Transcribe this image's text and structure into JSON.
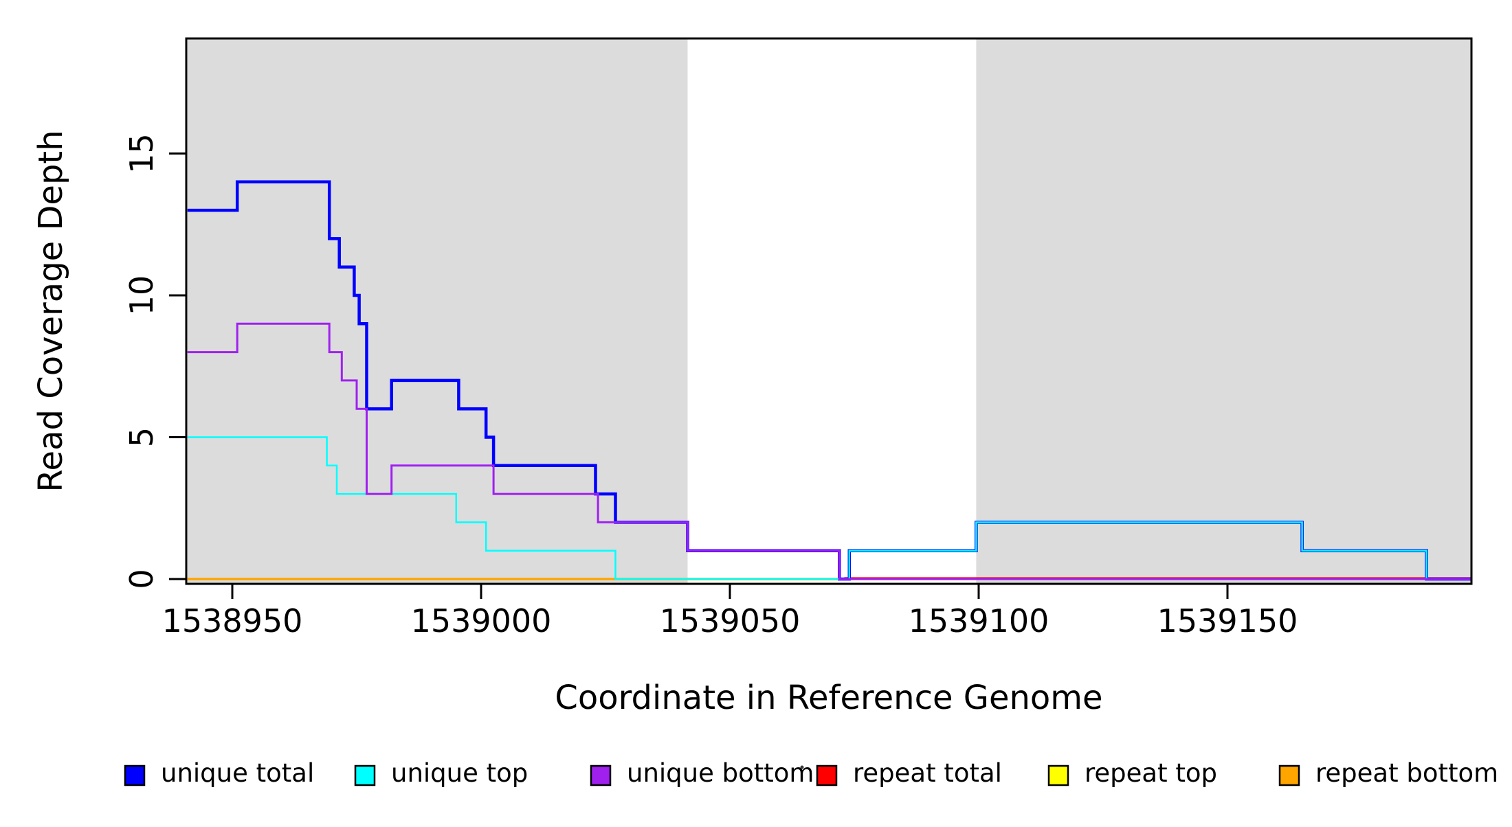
{
  "figure": {
    "background": "#FFFFFF",
    "band_color": "#DCDCDC",
    "axis_color": "#000000"
  },
  "labels": {
    "x": "Coordinate in Reference Genome",
    "y": "Read Coverage Depth"
  },
  "legend": {
    "items": [
      {
        "label": "unique total",
        "color": "#0000FF",
        "border": "#000000"
      },
      {
        "label": "unique top",
        "color": "#00FFFF",
        "border": "#000000"
      },
      {
        "label": "unique bottom",
        "color": "#A020F0",
        "border": "#000000"
      },
      {
        "label": "repeat total",
        "color": "#FF0000",
        "border": "#000000"
      },
      {
        "label": "repeat top",
        "color": "#FFFF00",
        "border": "#000000"
      },
      {
        "label": "repeat bottom",
        "color": "#FFA500",
        "border": "#000000"
      }
    ]
  },
  "chart_data": {
    "type": "line",
    "step": true,
    "title": "",
    "xlabel": "Coordinate in Reference Genome",
    "ylabel": "Read Coverage Depth",
    "x_range": [
      1538941,
      1539199
    ],
    "y_range": [
      0,
      19
    ],
    "x_ticks": [
      1538950,
      1539000,
      1539050,
      1539100,
      1539150
    ],
    "x_tick_labels": [
      "1538950",
      "1539000",
      "1539050",
      "1539100",
      "1539150"
    ],
    "y_ticks": [
      0,
      5,
      10,
      15
    ],
    "y_tick_labels": [
      "0",
      "5",
      "10",
      "15"
    ],
    "grid": false,
    "legend_position": "bottom",
    "shaded_regions": [
      {
        "from": 1538941,
        "to": 1539041.5,
        "color": "#DCDCDC"
      },
      {
        "from": 1539099.5,
        "to": 1539199,
        "color": "#DCDCDC"
      }
    ],
    "series": [
      {
        "name": "unique total",
        "color": "#0000FF",
        "width": 4.5,
        "points": [
          [
            1538941,
            13
          ],
          [
            1538951,
            14
          ],
          [
            1538969.5,
            12
          ],
          [
            1538971.5,
            11
          ],
          [
            1538974.5,
            10
          ],
          [
            1538975.5,
            9
          ],
          [
            1538977,
            6
          ],
          [
            1538982,
            7
          ],
          [
            1538995.5,
            6
          ],
          [
            1539001,
            5
          ],
          [
            1539002.5,
            4
          ],
          [
            1539023,
            3
          ],
          [
            1539027,
            2
          ],
          [
            1539041.5,
            1
          ],
          [
            1539072,
            0
          ],
          [
            1539074,
            1
          ],
          [
            1539099.5,
            2
          ],
          [
            1539165,
            1
          ],
          [
            1539190,
            0
          ]
        ]
      },
      {
        "name": "unique top",
        "color": "#00FFFF",
        "width": 2.5,
        "points": [
          [
            1538941,
            5
          ],
          [
            1538969,
            4
          ],
          [
            1538971,
            3
          ],
          [
            1538995,
            2
          ],
          [
            1539001,
            1
          ],
          [
            1539027,
            0
          ],
          [
            1539074,
            1
          ],
          [
            1539099.5,
            2
          ],
          [
            1539165,
            1
          ],
          [
            1539190,
            0
          ]
        ]
      },
      {
        "name": "unique bottom",
        "color": "#A020F0",
        "width": 3,
        "points": [
          [
            1538941,
            8
          ],
          [
            1538951,
            9
          ],
          [
            1538969.5,
            8
          ],
          [
            1538972,
            7
          ],
          [
            1538975,
            6
          ],
          [
            1538977,
            3
          ],
          [
            1538982,
            4
          ],
          [
            1539002.5,
            3
          ],
          [
            1539023.5,
            2
          ],
          [
            1539041.5,
            1
          ],
          [
            1539072,
            0
          ]
        ]
      },
      {
        "name": "repeat total",
        "color": "#FF0000",
        "width": 3.2,
        "points": [
          [
            1538941,
            0
          ]
        ],
        "render_from": 1539073,
        "y_nudge": -1
      },
      {
        "name": "repeat top",
        "color": "#FFFF00",
        "width": 2.5,
        "points": [
          [
            1538941,
            0
          ]
        ]
      },
      {
        "name": "repeat bottom",
        "color": "#FFA500",
        "width": 3.4,
        "points": [
          [
            1538941,
            0
          ]
        ],
        "render_to": 1539072
      }
    ],
    "draw_order": [
      "repeat top",
      "repeat bottom",
      "repeat total",
      "unique total",
      "unique top",
      "unique bottom"
    ]
  }
}
